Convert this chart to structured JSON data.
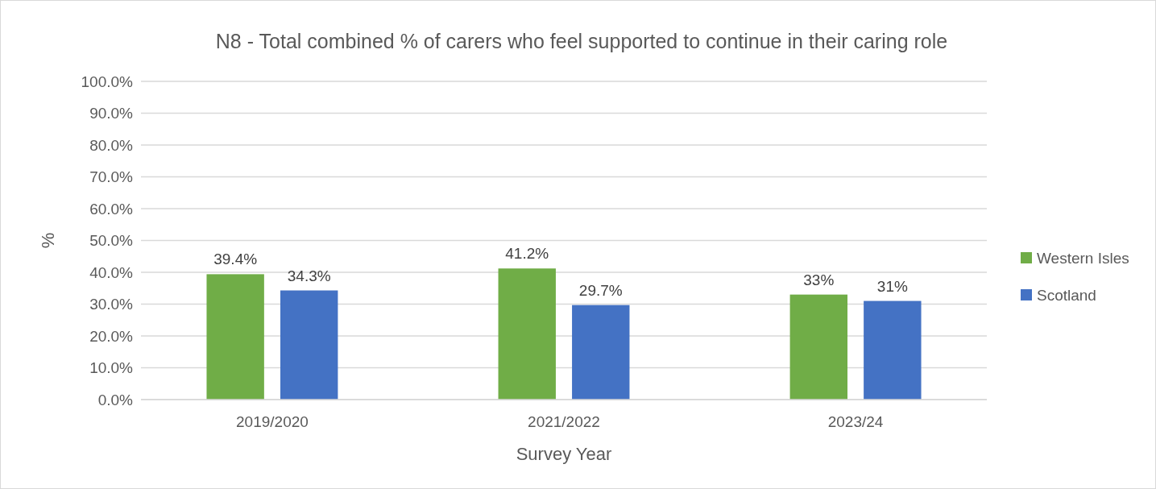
{
  "chart_data": {
    "type": "bar",
    "title": "N8 - Total combined % of carers who feel supported to continue in their caring role",
    "xlabel": "Survey Year",
    "ylabel": "%",
    "categories": [
      "2019/2020",
      "2021/2022",
      "2023/24"
    ],
    "series": [
      {
        "name": "Western Isles",
        "color": "#70ad47",
        "values": [
          39.4,
          41.2,
          33
        ],
        "value_labels": [
          "39.4%",
          "41.2%",
          "33%"
        ]
      },
      {
        "name": "Scotland",
        "color": "#4472c4",
        "values": [
          34.3,
          29.7,
          31
        ],
        "value_labels": [
          "34.3%",
          "29.7%",
          "31%"
        ]
      }
    ],
    "ylim": [
      0,
      100
    ],
    "yticks": [
      {
        "value": 0,
        "label": "0.0%"
      },
      {
        "value": 10,
        "label": "10.0%"
      },
      {
        "value": 20,
        "label": "20.0%"
      },
      {
        "value": 30,
        "label": "30.0%"
      },
      {
        "value": 40,
        "label": "40.0%"
      },
      {
        "value": 50,
        "label": "50.0%"
      },
      {
        "value": 60,
        "label": "60.0%"
      },
      {
        "value": 70,
        "label": "70.0%"
      },
      {
        "value": 80,
        "label": "80.0%"
      },
      {
        "value": 90,
        "label": "90.0%"
      },
      {
        "value": 100,
        "label": "100.0%"
      }
    ],
    "grid": "y",
    "legend": "right"
  }
}
